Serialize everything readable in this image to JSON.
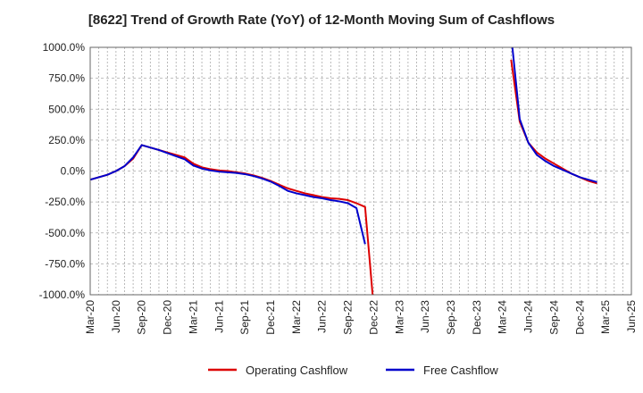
{
  "chart_data": {
    "type": "line",
    "title": "[8622]  Trend of Growth Rate (YoY) of 12-Month Moving Sum of Cashflows",
    "xlabel": "",
    "ylabel": "",
    "ylim": [
      -1000,
      1000
    ],
    "yticks": [
      1000,
      750,
      500,
      250,
      0,
      -250,
      -500,
      -750,
      -1000
    ],
    "ytick_labels": [
      "1000.0%",
      "750.0%",
      "500.0%",
      "250.0%",
      "0.0%",
      "-250.0%",
      "-500.0%",
      "-750.0%",
      "-1000.0%"
    ],
    "x_labels": [
      "Mar-20",
      "Jun-20",
      "Sep-20",
      "Dec-20",
      "Mar-21",
      "Jun-21",
      "Sep-21",
      "Dec-21",
      "Mar-22",
      "Jun-22",
      "Sep-22",
      "Dec-22",
      "Mar-23",
      "Jun-23",
      "Sep-23",
      "Dec-23",
      "Mar-24",
      "Jun-24",
      "Sep-24",
      "Dec-24",
      "Mar-25",
      "Jun-25"
    ],
    "x_months": [
      "2020-03",
      "2020-04",
      "2020-05",
      "2020-06",
      "2020-07",
      "2020-08",
      "2020-09",
      "2020-10",
      "2020-11",
      "2020-12",
      "2021-01",
      "2021-02",
      "2021-03",
      "2021-04",
      "2021-05",
      "2021-06",
      "2021-07",
      "2021-08",
      "2021-09",
      "2021-10",
      "2021-11",
      "2021-12",
      "2022-01",
      "2022-02",
      "2022-03",
      "2022-04",
      "2022-05",
      "2022-06",
      "2022-07",
      "2022-08",
      "2022-09",
      "2022-10",
      "2022-11",
      "2022-12",
      "2023-01",
      "2023-02",
      "2023-03",
      "2023-04",
      "2023-05",
      "2023-06",
      "2023-07",
      "2023-08",
      "2023-09",
      "2023-10",
      "2023-11",
      "2023-12",
      "2024-01",
      "2024-02",
      "2024-03",
      "2024-04",
      "2024-05",
      "2024-06",
      "2024-07",
      "2024-08",
      "2024-09",
      "2024-10",
      "2024-11",
      "2024-12",
      "2025-01",
      "2025-02",
      "2025-03",
      "2025-04",
      "2025-05",
      "2025-06"
    ],
    "grid": true,
    "legend": "bottom",
    "series": [
      {
        "name": "Operating Cashflow",
        "color": "#dd0000",
        "values": [
          -70,
          -50,
          -30,
          0,
          40,
          100,
          210,
          190,
          170,
          150,
          130,
          110,
          60,
          30,
          15,
          5,
          0,
          -10,
          -20,
          -35,
          -55,
          -80,
          -110,
          -140,
          -160,
          -180,
          -195,
          -210,
          -220,
          -225,
          -235,
          -260,
          -290,
          -1100,
          null,
          null,
          null,
          null,
          null,
          null,
          null,
          null,
          null,
          null,
          null,
          null,
          null,
          null,
          null,
          900,
          400,
          230,
          150,
          100,
          60,
          20,
          -20,
          -50,
          -80,
          -100,
          null,
          null,
          null,
          null
        ]
      },
      {
        "name": "Free Cashflow",
        "color": "#0000cc",
        "values": [
          -70,
          -50,
          -30,
          0,
          40,
          110,
          210,
          190,
          170,
          145,
          120,
          95,
          45,
          20,
          5,
          -5,
          -10,
          -15,
          -25,
          -40,
          -60,
          -85,
          -120,
          -160,
          -180,
          -195,
          -210,
          -220,
          -235,
          -245,
          -260,
          -300,
          -590,
          null,
          null,
          null,
          null,
          null,
          null,
          null,
          null,
          null,
          null,
          null,
          null,
          null,
          null,
          null,
          null,
          1100,
          420,
          230,
          130,
          80,
          40,
          10,
          -20,
          -50,
          -70,
          -90,
          null,
          null,
          null,
          null
        ]
      }
    ]
  }
}
